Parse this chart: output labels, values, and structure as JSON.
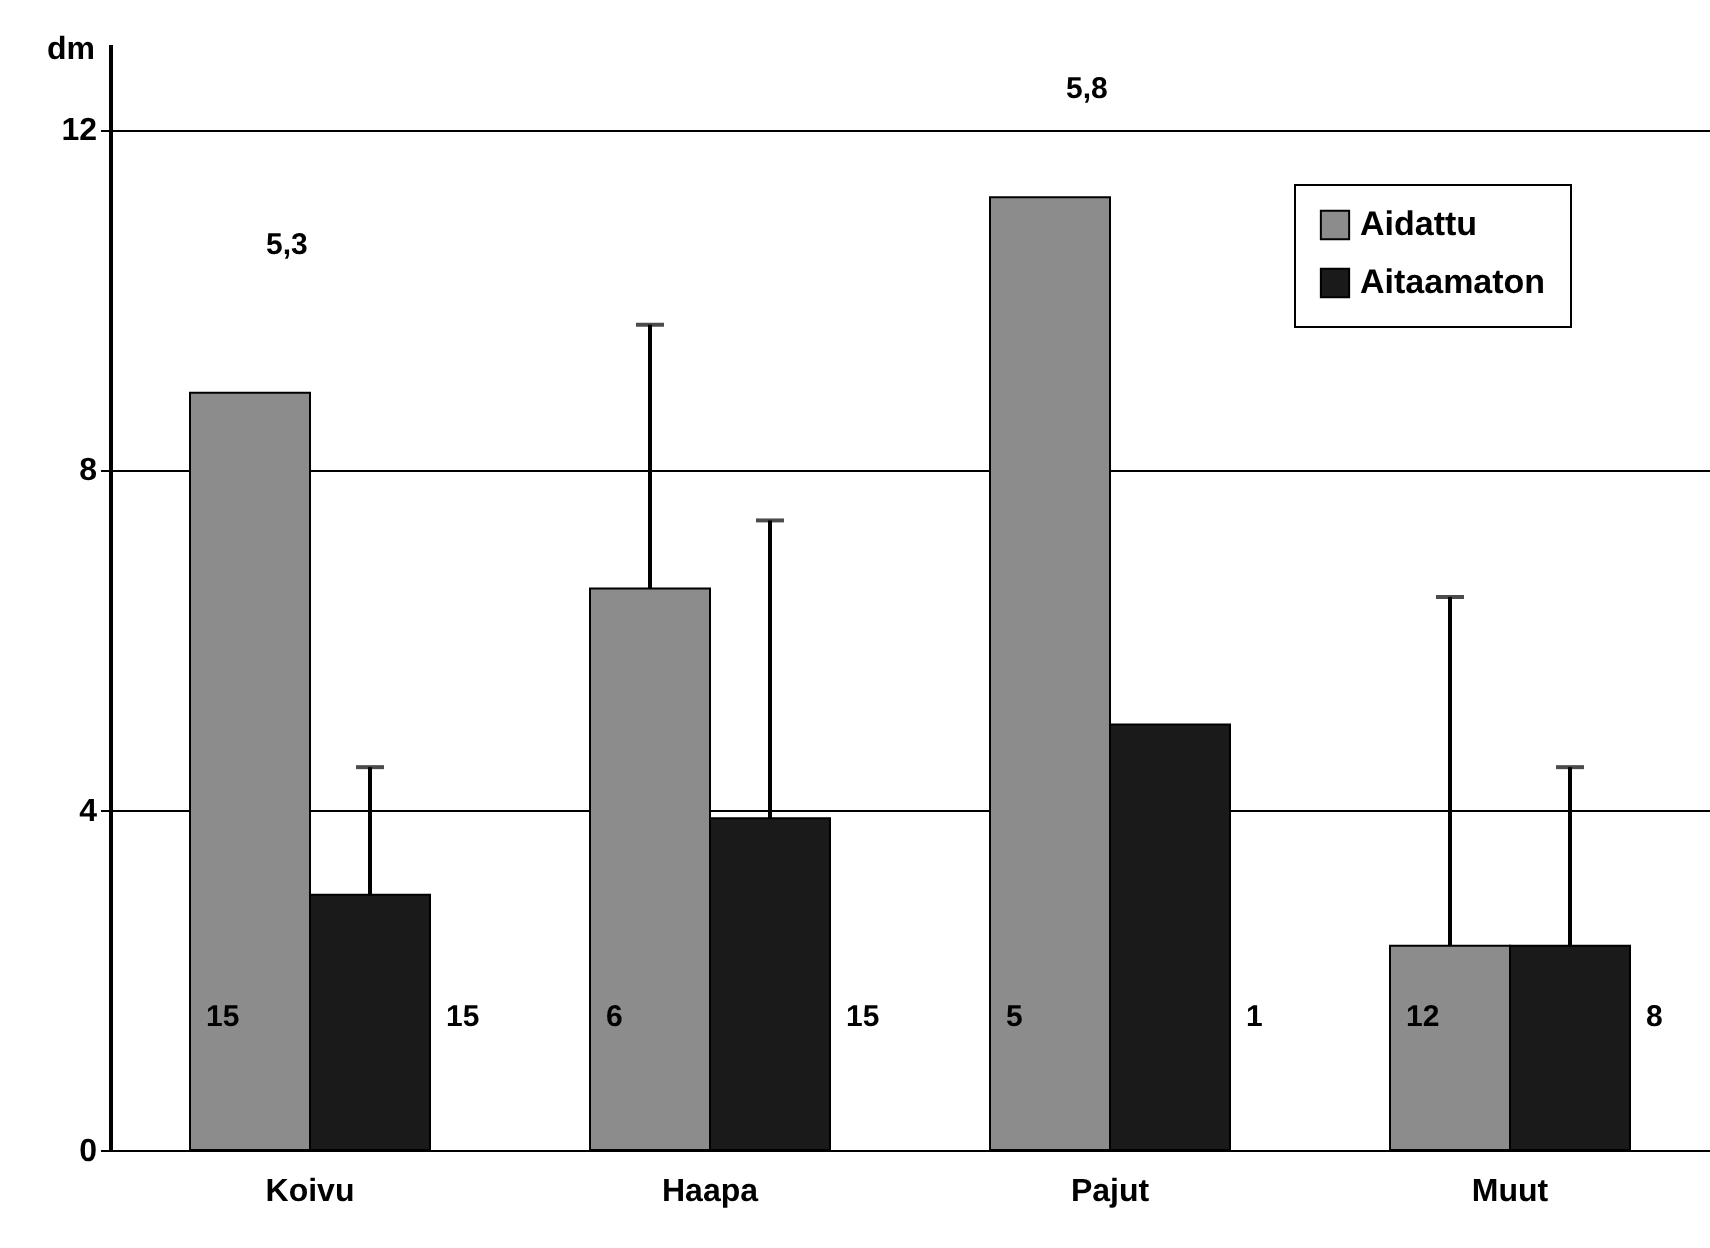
{
  "chart_data": {
    "type": "bar",
    "ylabel": "dm",
    "categories": [
      "Koivu",
      "Haapa",
      "Pajut",
      "Muut"
    ],
    "series": [
      {
        "name": "Aidattu",
        "color": "#8c8c8c",
        "values": [
          8.9,
          6.6,
          11.2,
          2.4
        ],
        "errors": [
          null,
          [
            6.6,
            9.7
          ],
          null,
          [
            2.4,
            6.5
          ]
        ]
      },
      {
        "name": "Aitaamaton",
        "color": "#1a1a1a",
        "values": [
          3.0,
          3.9,
          5.0,
          2.4
        ],
        "errors": [
          [
            3.0,
            4.5
          ],
          [
            3.9,
            7.4
          ],
          null,
          [
            2.4,
            4.5
          ]
        ]
      }
    ],
    "annotations": [
      "15",
      "6",
      "5",
      "12",
      "15",
      "15",
      "1",
      "8",
      "5,3",
      "5,8"
    ],
    "ylim": [
      0,
      13
    ],
    "yticks": [
      0,
      4,
      8,
      12
    ],
    "grid": "y",
    "legend": "top right"
  }
}
